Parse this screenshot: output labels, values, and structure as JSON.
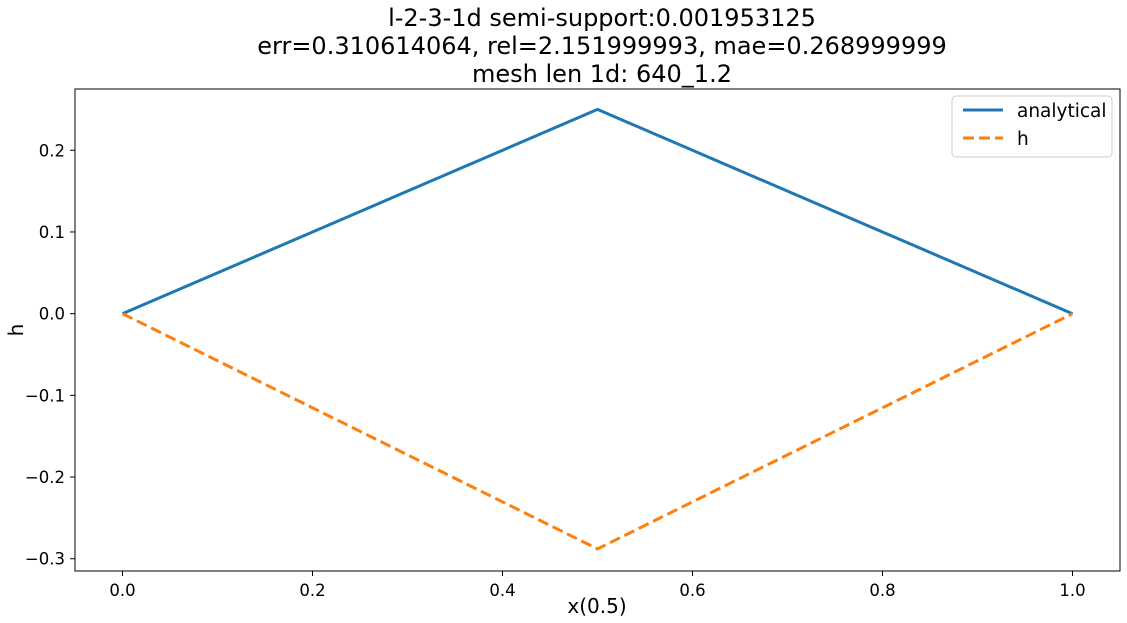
{
  "chart_data": {
    "type": "line",
    "title_lines": [
      "l-2-3-1d  semi-support:0.001953125",
      "err=0.310614064, rel=2.151999993, mae=0.268999999",
      "mesh len 1d: 640_1.2"
    ],
    "xlabel": "x(0.5)",
    "ylabel": "h",
    "xlim": [
      -0.05,
      1.05
    ],
    "ylim": [
      -0.315,
      0.275
    ],
    "xticks": [
      0.0,
      0.2,
      0.4,
      0.6,
      0.8,
      1.0
    ],
    "xtick_labels": [
      "0.0",
      "0.2",
      "0.4",
      "0.6",
      "0.8",
      "1.0"
    ],
    "yticks": [
      0.2,
      0.1,
      0.0,
      -0.1,
      -0.2,
      -0.3
    ],
    "ytick_labels": [
      "0.2",
      "0.1",
      "0.0",
      "−0.1",
      "−0.2",
      "−0.3"
    ],
    "grid": false,
    "legend_position": "top-right",
    "series": [
      {
        "name": "analytical",
        "x": [
          0.0,
          0.5,
          1.0
        ],
        "y": [
          0.0,
          0.25,
          0.0
        ],
        "color": "#1f77b4",
        "style": "solid"
      },
      {
        "name": "h",
        "x": [
          0.0,
          0.5,
          1.0
        ],
        "y": [
          0.0,
          -0.288,
          0.0
        ],
        "color": "#ff7f0e",
        "style": "dashed"
      }
    ]
  }
}
